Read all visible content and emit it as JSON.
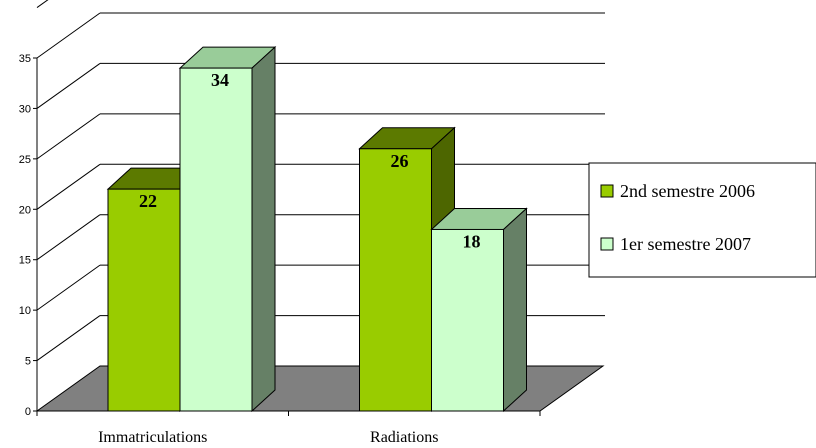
{
  "chart_data": {
    "type": "bar",
    "categories": [
      "Immatriculations",
      "Radiations"
    ],
    "series": [
      {
        "name": "2nd semestre 2006",
        "values": [
          22,
          26
        ],
        "color": "#99cc00"
      },
      {
        "name": "1er semestre 2007",
        "values": [
          34,
          18
        ],
        "color": "#ccffcc"
      }
    ],
    "ylim": [
      0,
      35
    ],
    "yticks": [
      0,
      5,
      10,
      15,
      20,
      25,
      30,
      35
    ],
    "title": "",
    "xlabel": "",
    "ylabel": "",
    "grid": true,
    "legend_position": "right",
    "three_d": true,
    "floor_color": "#808080"
  }
}
